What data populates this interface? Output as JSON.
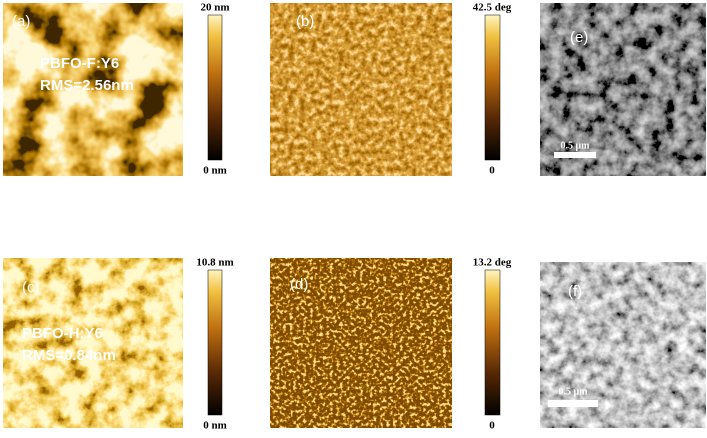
{
  "panels": [
    {
      "label": "(a)",
      "overlay": [
        "PBFO-F:Y6",
        "RMS=2.56nm"
      ],
      "colorbar": {
        "max": "20 nm",
        "min": "0 nm"
      }
    },
    {
      "label": "(b)",
      "colorbar": {
        "max": "42.5 deg",
        "min": "0"
      }
    },
    {
      "label": "(e)",
      "scale_bar": "0.5 μm"
    },
    {
      "label": "(c)",
      "overlay": [
        "PBFO-H:Y6",
        "RMS=0.84nm"
      ],
      "colorbar": {
        "max": "10.8 nm",
        "min": "0 nm"
      }
    },
    {
      "label": "(d)",
      "colorbar": {
        "max": "13.2 deg",
        "min": "0"
      }
    },
    {
      "label": "(f)",
      "scale_bar": "0.5 μm"
    }
  ]
}
